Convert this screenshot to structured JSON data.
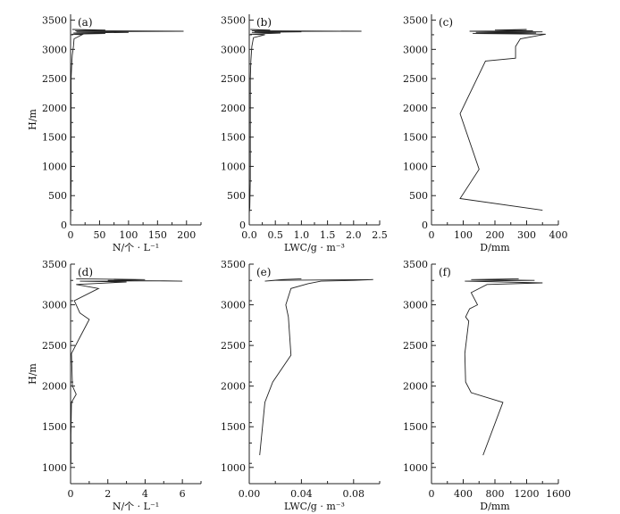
{
  "chart_data": [
    {
      "type": "line",
      "panel": "(a)",
      "xlabel": "N/个 · L⁻¹",
      "ylabel": "H/m",
      "xlim": [
        0,
        225
      ],
      "ylim": [
        0,
        3600
      ],
      "xticks": [
        0,
        50,
        100,
        150,
        200
      ],
      "yticks": [
        0,
        500,
        1000,
        1500,
        2000,
        2500,
        3000,
        3500
      ],
      "series": [
        {
          "points": [
            [
              0,
              0
            ],
            [
              0.5,
              300
            ],
            [
              1,
              800
            ],
            [
              1,
              1500
            ],
            [
              1,
              2000
            ],
            [
              1,
              2500
            ],
            [
              2,
              2750
            ],
            [
              3,
              2900
            ],
            [
              5,
              3050
            ],
            [
              6,
              3180
            ],
            [
              20,
              3250
            ],
            [
              2,
              3260
            ],
            [
              60,
              3270
            ],
            [
              5,
              3280
            ],
            [
              100,
              3290
            ],
            [
              10,
              3300
            ],
            [
              195,
              3310
            ],
            [
              8,
              3320
            ],
            [
              60,
              3330
            ],
            [
              3,
              3340
            ]
          ]
        }
      ]
    },
    {
      "type": "line",
      "panel": "(b)",
      "xlabel": "LWC/g · m⁻³",
      "ylabel": "",
      "xlim": [
        0,
        2.5
      ],
      "ylim": [
        0,
        3600
      ],
      "xticks": [
        0.0,
        0.5,
        1.0,
        1.5,
        2.0,
        2.5
      ],
      "yticks": [
        0,
        500,
        1000,
        1500,
        2000,
        2500,
        3000,
        3500
      ],
      "series": [
        {
          "points": [
            [
              0,
              200
            ],
            [
              0.01,
              300
            ],
            [
              0.02,
              800
            ],
            [
              0.02,
              1500
            ],
            [
              0.02,
              2500
            ],
            [
              0.03,
              2800
            ],
            [
              0.05,
              3050
            ],
            [
              0.08,
              3200
            ],
            [
              0.3,
              3250
            ],
            [
              0.02,
              3260
            ],
            [
              0.6,
              3280
            ],
            [
              0.05,
              3290
            ],
            [
              1.0,
              3300
            ],
            [
              0.1,
              3305
            ],
            [
              2.15,
              3310
            ],
            [
              0.05,
              3320
            ],
            [
              0.4,
              3330
            ],
            [
              0.02,
              3340
            ]
          ]
        }
      ]
    },
    {
      "type": "line",
      "panel": "(c)",
      "xlabel": "D/mm",
      "ylabel": "",
      "xlim": [
        0,
        400
      ],
      "ylim": [
        0,
        3600
      ],
      "xticks": [
        0,
        100,
        200,
        300,
        400
      ],
      "yticks": [
        0,
        500,
        1000,
        1500,
        2000,
        2500,
        3000,
        3500
      ],
      "series": [
        {
          "points": [
            [
              350,
              250
            ],
            [
              90,
              450
            ],
            [
              150,
              950
            ],
            [
              90,
              1900
            ],
            [
              170,
              2800
            ],
            [
              265,
              2850
            ],
            [
              265,
              3050
            ],
            [
              280,
              3180
            ],
            [
              360,
              3260
            ],
            [
              130,
              3270
            ],
            [
              330,
              3280
            ],
            [
              140,
              3290
            ],
            [
              350,
              3300
            ],
            [
              120,
              3310
            ],
            [
              320,
              3320
            ],
            [
              200,
              3330
            ],
            [
              300,
              3340
            ]
          ]
        }
      ]
    },
    {
      "type": "line",
      "panel": "(d)",
      "xlabel": "N/个 · L⁻¹",
      "ylabel": "H/m",
      "xlim": [
        0,
        7
      ],
      "ylim": [
        800,
        3500
      ],
      "xticks": [
        0,
        2,
        4,
        6
      ],
      "yticks": [
        1000,
        1500,
        2000,
        2500,
        3000,
        3500
      ],
      "series": [
        {
          "points": [
            [
              0.02,
              1050
            ],
            [
              0.02,
              1400
            ],
            [
              0.05,
              1800
            ],
            [
              0.3,
              1900
            ],
            [
              0.1,
              2000
            ],
            [
              0.05,
              2400
            ],
            [
              0.5,
              2600
            ],
            [
              1.0,
              2820
            ],
            [
              0.5,
              2900
            ],
            [
              0.2,
              3050
            ],
            [
              1.5,
              3200
            ],
            [
              0.3,
              3250
            ],
            [
              3.0,
              3280
            ],
            [
              0.5,
              3290
            ],
            [
              5.0,
              3295
            ],
            [
              6.0,
              3290
            ],
            [
              2.0,
              3300
            ],
            [
              4.0,
              3310
            ],
            [
              0.3,
              3320
            ]
          ]
        }
      ]
    },
    {
      "type": "line",
      "panel": "(e)",
      "xlabel": "LWC/g · m⁻³",
      "ylabel": "",
      "xlim": [
        0,
        0.1
      ],
      "ylim": [
        800,
        3500
      ],
      "xticks": [
        0.0,
        0.04,
        0.08
      ],
      "yticks": [
        1000,
        1500,
        2000,
        2500,
        3000,
        3500
      ],
      "series": [
        {
          "points": [
            [
              0.008,
              1150
            ],
            [
              0.012,
              1800
            ],
            [
              0.018,
              2050
            ],
            [
              0.032,
              2380
            ],
            [
              0.03,
              2850
            ],
            [
              0.028,
              3000
            ],
            [
              0.032,
              3200
            ],
            [
              0.045,
              3260
            ],
            [
              0.055,
              3290
            ],
            [
              0.08,
              3300
            ],
            [
              0.095,
              3310
            ],
            [
              0.02,
              3300
            ],
            [
              0.012,
              3290
            ],
            [
              0.025,
              3310
            ],
            [
              0.04,
              3320
            ]
          ]
        }
      ]
    },
    {
      "type": "line",
      "panel": "(f)",
      "xlabel": "D/mm",
      "ylabel": "",
      "xlim": [
        0,
        1600
      ],
      "ylim": [
        800,
        3500
      ],
      "xticks": [
        0,
        400,
        800,
        1200,
        1600
      ],
      "yticks": [
        1000,
        1500,
        2000,
        2500,
        3000,
        3500
      ],
      "series": [
        {
          "points": [
            [
              650,
              1150
            ],
            [
              900,
              1800
            ],
            [
              500,
              1920
            ],
            [
              430,
              2050
            ],
            [
              420,
              2400
            ],
            [
              470,
              2800
            ],
            [
              430,
              2850
            ],
            [
              480,
              2950
            ],
            [
              580,
              3000
            ],
            [
              500,
              3150
            ],
            [
              700,
              3250
            ],
            [
              1400,
              3270
            ],
            [
              420,
              3290
            ],
            [
              1300,
              3300
            ],
            [
              500,
              3310
            ],
            [
              1100,
              3320
            ]
          ]
        }
      ]
    }
  ]
}
